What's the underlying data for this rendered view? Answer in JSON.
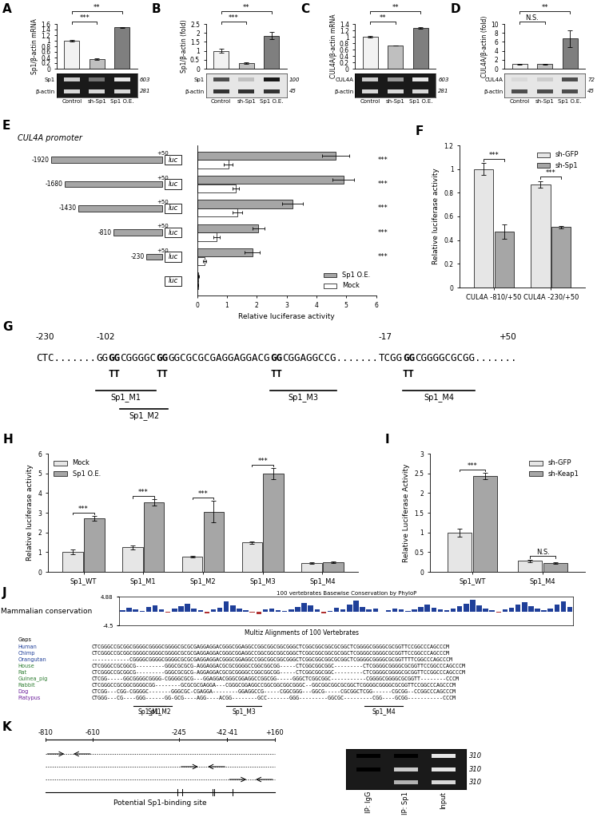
{
  "chart_data": [
    {
      "panel": "A",
      "type": "bar",
      "ylabel": "Sp1/β-actin mRNA",
      "categories": [
        "Control",
        "sh-Sp1",
        "Sp1 O.E."
      ],
      "values": [
        1,
        0.35,
        1.48
      ],
      "errors": [
        0.03,
        0.03,
        0.01
      ],
      "colors": [
        "#f2f2f2",
        "#bfbfbf",
        "#7f7f7f"
      ],
      "ylim": [
        0,
        1.6
      ],
      "yticks": [
        0,
        0.2,
        0.4,
        0.6,
        0.8,
        1,
        1.2,
        1.4,
        1.6
      ],
      "significance": [
        {
          "pair": [
            0,
            1
          ],
          "label": "***"
        },
        {
          "pair": [
            0,
            2
          ],
          "label": "**"
        }
      ],
      "blot": {
        "rows": [
          {
            "label": "Sp1",
            "size": 603,
            "intensity": [
              0.8,
              0.45,
              0.9
            ]
          },
          {
            "label": "β-actin",
            "size": 281,
            "intensity": [
              0.85,
              0.85,
              0.85
            ]
          }
        ]
      }
    },
    {
      "panel": "B",
      "type": "bar",
      "ylabel": "Sp1/β-actin (fold)",
      "categories": [
        "Control",
        "sh-Sp1",
        "Sp1 O.E."
      ],
      "values": [
        1,
        0.3,
        1.85
      ],
      "errors": [
        0.1,
        0.05,
        0.22
      ],
      "colors": [
        "#f2f2f2",
        "#bfbfbf",
        "#7f7f7f"
      ],
      "ylim": [
        0,
        2.5
      ],
      "yticks": [
        0,
        0.5,
        1,
        1.5,
        2,
        2.5
      ],
      "significance": [
        {
          "pair": [
            0,
            1
          ],
          "label": "***"
        },
        {
          "pair": [
            0,
            2
          ],
          "label": "**"
        }
      ],
      "blot": {
        "rows": [
          {
            "label": "Sp1",
            "size": 100,
            "intensity": [
              0.7,
              0.25,
              0.9
            ]
          },
          {
            "label": "β-actin",
            "size": 45,
            "intensity": [
              0.8,
              0.8,
              0.8
            ]
          }
        ]
      }
    },
    {
      "panel": "C",
      "type": "bar",
      "ylabel": "CUL4A/β-actin mRNA",
      "categories": [
        "Control",
        "sh-Sp1",
        "Sp1 O.E."
      ],
      "values": [
        1,
        0.73,
        1.27
      ],
      "errors": [
        0.02,
        0.005,
        0.03
      ],
      "colors": [
        "#f2f2f2",
        "#bfbfbf",
        "#7f7f7f"
      ],
      "ylim": [
        0,
        1.4
      ],
      "yticks": [
        0,
        0.2,
        0.4,
        0.6,
        0.8,
        1,
        1.2,
        1.4
      ],
      "significance": [
        {
          "pair": [
            0,
            1
          ],
          "label": "**"
        },
        {
          "pair": [
            0,
            2
          ],
          "label": "**"
        }
      ],
      "blot": {
        "rows": [
          {
            "label": "CUL4A",
            "size": 603,
            "intensity": [
              0.8,
              0.6,
              0.9
            ]
          },
          {
            "label": "β-actin",
            "size": 281,
            "intensity": [
              0.85,
              0.85,
              0.85
            ]
          }
        ]
      }
    },
    {
      "panel": "D",
      "type": "bar",
      "ylabel": "CUL4A/β-actin (fold)",
      "categories": [
        "Control",
        "sh-Sp1",
        "Sp1 O.E."
      ],
      "values": [
        1,
        1.05,
        6.7
      ],
      "errors": [
        0.12,
        0.1,
        1.8
      ],
      "colors": [
        "#f2f2f2",
        "#bfbfbf",
        "#7f7f7f"
      ],
      "ylim": [
        0,
        10
      ],
      "yticks": [
        0,
        2,
        4,
        6,
        8,
        10
      ],
      "significance": [
        {
          "pair": [
            0,
            1
          ],
          "label": "N.S."
        },
        {
          "pair": [
            0,
            2
          ],
          "label": "**"
        }
      ],
      "blot": {
        "rows": [
          {
            "label": "CUL4A",
            "size": 72,
            "intensity": [
              0.15,
              0.2,
              0.7
            ]
          },
          {
            "label": "β-actin",
            "size": 45,
            "intensity": [
              0.7,
              0.7,
              0.7
            ]
          }
        ]
      }
    },
    {
      "panel": "E",
      "type": "bar",
      "orientation": "horizontal",
      "title": "CUL4A promoter",
      "categories": [
        "-1920",
        "-1680",
        "-1430",
        "-810",
        "-230",
        null
      ],
      "end_label": "+50",
      "reporter": "luc",
      "series": [
        {
          "name": "Sp1 O.E.",
          "color": "#a6a6a6",
          "values": [
            4.65,
            4.9,
            3.2,
            2.05,
            1.85,
            0.05
          ],
          "errors": [
            0.45,
            0.35,
            0.35,
            0.2,
            0.25,
            0.01
          ]
        },
        {
          "name": "Mock",
          "color": "#ffffff",
          "values": [
            1.05,
            1.3,
            1.35,
            0.65,
            0.25,
            0.03
          ],
          "errors": [
            0.15,
            0.1,
            0.15,
            0.1,
            0.05,
            0.01
          ]
        }
      ],
      "xlabel": "Relative luciferase activity",
      "xlim": [
        0,
        6
      ],
      "xticks": [
        0,
        1,
        2,
        3,
        4,
        5,
        6
      ],
      "legend": "lower right",
      "significance": [
        "***",
        "***",
        "***",
        "***",
        "***",
        null
      ]
    },
    {
      "panel": "F",
      "type": "bar",
      "categories": [
        "CUL4A -810/+50",
        "CUL4A -230/+50"
      ],
      "series": [
        {
          "name": "sh-GFP",
          "color": "#e6e6e6",
          "values": [
            1.0,
            0.87
          ],
          "errors": [
            0.05,
            0.03
          ]
        },
        {
          "name": "sh-Sp1",
          "color": "#a6a6a6",
          "values": [
            0.47,
            0.51
          ],
          "errors": [
            0.06,
            0.01
          ]
        }
      ],
      "ylabel": "Relative luciferase activity",
      "ylim": [
        0,
        1.2
      ],
      "yticks": [
        0,
        0.2,
        0.4,
        0.6,
        0.8,
        1,
        1.2
      ],
      "legend": "upper right",
      "significance": [
        "***",
        "***"
      ]
    },
    {
      "panel": "H",
      "type": "bar",
      "categories": [
        "Sp1_WT",
        "Sp1_M1",
        "Sp1_M2",
        "Sp1_M3",
        "Sp1_M4"
      ],
      "series": [
        {
          "name": "Mock",
          "color": "#e6e6e6",
          "values": [
            1.0,
            1.25,
            0.78,
            1.48,
            0.45
          ],
          "errors": [
            0.12,
            0.1,
            0.04,
            0.08,
            0.03
          ]
        },
        {
          "name": "Sp1 O.E.",
          "color": "#a6a6a6",
          "values": [
            2.72,
            3.52,
            3.05,
            4.98,
            0.5
          ],
          "errors": [
            0.12,
            0.15,
            0.55,
            0.28,
            0.04
          ]
        }
      ],
      "ylabel": "Relative luciferase activity",
      "ylim": [
        0,
        6
      ],
      "yticks": [
        0,
        1,
        2,
        3,
        4,
        5,
        6
      ],
      "legend": "upper left",
      "significance": [
        "***",
        "***",
        "***",
        "***",
        null
      ]
    },
    {
      "panel": "I",
      "type": "bar",
      "categories": [
        "Sp1_WT",
        "Sp1_M4"
      ],
      "series": [
        {
          "name": "sh-GFP",
          "color": "#e6e6e6",
          "values": [
            1.0,
            0.28
          ],
          "errors": [
            0.1,
            0.03
          ]
        },
        {
          "name": "sh-Keap1",
          "color": "#a6a6a6",
          "values": [
            2.43,
            0.22
          ],
          "errors": [
            0.08,
            0.02
          ]
        }
      ],
      "ylabel": "Relative Luciferase Activity",
      "ylim": [
        0,
        3
      ],
      "yticks": [
        0,
        0.5,
        1,
        1.5,
        2,
        2.5,
        3
      ],
      "legend": "upper right",
      "significance": [
        "***",
        "N.S."
      ]
    }
  ],
  "diagrams": {
    "G": {
      "panel": "G",
      "segments": [
        {
          "text": "CTC.......",
          "above": "-230"
        },
        {
          "text": "GG",
          "above": "-102"
        },
        {
          "text": "GG",
          "mutation": "TT"
        },
        {
          "text": "CGGGGC"
        },
        {
          "text": "GG",
          "mutation": "TT"
        },
        {
          "text": "GGCGCGCGAGGAGGACG"
        },
        {
          "text": "GG",
          "mutation": "TT"
        },
        {
          "text": "CGGAGGCCG......."
        },
        {
          "text": "TCGG",
          "above": "-17"
        },
        {
          "text": "GG",
          "mutation": "TT"
        },
        {
          "text": "CGGGGCGCGG......."
        }
      ],
      "end_label": "+50",
      "motifs": [
        {
          "name": "Sp1_M1",
          "from": 1,
          "to": 3
        },
        {
          "name": "Sp1_M2",
          "from": 3,
          "to": 4
        },
        {
          "name": "Sp1_M3",
          "from": 6,
          "to": 7
        },
        {
          "name": "Sp1_M4",
          "from": 9,
          "to": 10
        }
      ]
    },
    "J": {
      "panel": "J",
      "ylabel": "Mammalian conservation",
      "track_title": "100 vertebrates Basewise Conservation by PhyloP",
      "alignment_title": "Multiz Alignments of 100 Vertebrates",
      "gaps_label": "Gaps",
      "ylim": [
        -4.5,
        4.88
      ],
      "yticks": [
        -4.5,
        4.88
      ],
      "conservation": [
        0.5,
        1.2,
        0.8,
        0.3,
        1.5,
        2.0,
        0.6,
        -0.4,
        0.9,
        1.8,
        2.5,
        1.1,
        0.4,
        -0.6,
        0.7,
        1.3,
        3.2,
        2.1,
        0.9,
        0.5,
        -0.3,
        -0.8,
        0.6,
        1.0,
        0.4,
        0.2,
        0.8,
        1.6,
        2.8,
        1.9,
        0.7,
        -0.5,
        0.3,
        1.2,
        0.8,
        2.2,
        3.5,
        1.4,
        0.6,
        0.9,
        -0.2,
        0.5,
        1.1,
        0.7,
        0.3,
        0.6,
        1.5,
        2.4,
        1.2,
        0.8,
        0.4,
        0.9,
        1.7,
        2.6,
        3.9,
        2.0,
        1.0,
        0.5,
        -0.4,
        0.6,
        1.3,
        2.2,
        3.0,
        1.8,
        0.9,
        0.4,
        1.1,
        2.3,
        3.4,
        1.6
      ],
      "species": [
        {
          "name": "Human",
          "sequence": "CTCGGGCCGCGGCGGGGCGGGGCGGGGCGCGCGAGGAGGACGGGCGGAGGCCGGCGGCGGCGGGCTCGGCGGCGGCGCGGCTCGGGGCGGGGCGCGGTTCCGGCCCAGCCCM"
        },
        {
          "name": "Chimp",
          "sequence": "CTCGGGCCGCGGCGGGGCGGGGCGGGGCGCGCGAGGAGGACGGGCGGAGGCCGGCGGCGGCGGGCTCGGCGGCGGCGCGGCTCGGGGCGGGGCGCGGTTCCGGCCCAGCCCM"
        },
        {
          "name": "Orangutan",
          "sequence": "------------CGGGGCGGGGCGGGGCGCGCGAGGAGGACGGGCGGAGGCCGGCGGCGGCGGGCTCGGCGGCGGCGCGGCTCGGGGCGGGGCGCGGTTTTCGGCCCAGCCCM"
        },
        {
          "name": "House",
          "sequence": "CTCGGGCCGCGGCG---------GGGCGCGCG-AGGAGGACGCGCGGGGCCGGCGGCGG-----CTCGGCGGCGGC---------CTCGGGGCGGGGCGCGGTTCCGGCCCAGCCCM"
        },
        {
          "name": "Rat",
          "sequence": "CTCGGGCCGCGGCG---------GGGCGCGCG-AGGAGGACGCGCGGGGCCGGCGGCGG-----CTCGGCGGCGGC---------CTCGGGGCGGGGCGCGGTTCCGGCCCAGCCCM"
        },
        {
          "name": "Guinea_pig",
          "sequence": "CTCGG-----GGCGGGGCGGGG-CGGGGCGCG---GGAGGACGGGCGGAGGCCGGCGG-----GGGCTCGGCGGC-----------CGGGGCGGGGCGCGGTT--------CCCM"
        },
        {
          "name": "Rabbit",
          "sequence": "CTCGGGCCGCGGCGGGGCGG--------GCGCGCGAGGA---CGGGCGGAGGCCGGCGGCGGCGGGC--GGCGGCGGCGCGGCTCGGGGCGGGGCGCGGTTCCGGCCCAGCCCM"
        },
        {
          "name": "Dog",
          "sequence": "CTCGG---CGG-CGGGGC-------GGGCGC-CGAGGA--------GGAGGCCG-----CGGCGGG---GGCG-----CGCGGCTCGG------CGCGG--CCGGCCCAGCCCM"
        },
        {
          "name": "Platypus",
          "sequence": "CTGGG---CG----GGG------GG-GCG----AGG----ACGG--------GCC-------GGG---------GGCGC---------CGG----GCGG-----------CCCM"
        }
      ]
    },
    "K": {
      "panel": "K",
      "positions": [
        "-810",
        "-610",
        "-245",
        "-42",
        "-41",
        "+160"
      ],
      "amplicons": [
        [
          "-810",
          "-610"
        ],
        [
          "-245",
          "-42"
        ],
        [
          "-41",
          "+160"
        ]
      ],
      "sites": [
        -250,
        -230,
        -102,
        -96,
        -17
      ],
      "site_label": "Potential Sp1-binding site",
      "lanes": [
        "IP: IgG",
        "IP: Sp1",
        "Input"
      ],
      "bands": [
        [
          0,
          0,
          0.9
        ],
        [
          0,
          0.8,
          0.9
        ],
        [
          0.1,
          0.7,
          0.85
        ]
      ],
      "band_size": 310
    }
  }
}
